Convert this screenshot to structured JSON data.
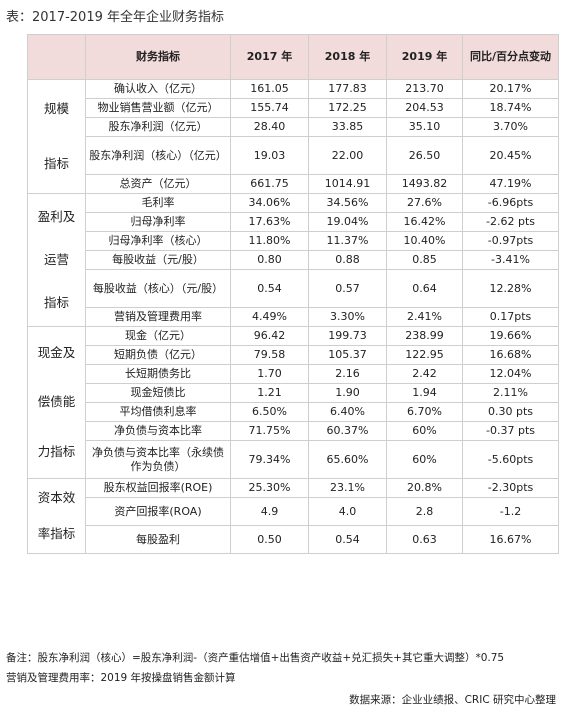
{
  "title": "表：2017-2019 年全年企业财务指标",
  "headers": {
    "metric": "财务指标",
    "y2017": "2017 年",
    "y2018": "2018 年",
    "y2019": "2019 年",
    "change": "同比/百分点变动"
  },
  "groups": [
    {
      "category": [
        "规模",
        "指标"
      ],
      "rows": [
        {
          "metric": "确认收入（亿元）",
          "y2017": "161.05",
          "y2018": "177.83",
          "y2019": "213.70",
          "change": "20.17%"
        },
        {
          "metric": "物业销售营业额（亿元）",
          "y2017": "155.74",
          "y2018": "172.25",
          "y2019": "204.53",
          "change": "18.74%"
        },
        {
          "metric": "股东净利润（亿元）",
          "y2017": "28.40",
          "y2018": "33.85",
          "y2019": "35.10",
          "change": "3.70%"
        },
        {
          "metric": "股东净利润（核心）（亿元）",
          "y2017": "19.03",
          "y2018": "22.00",
          "y2019": "26.50",
          "change": "20.45%"
        },
        {
          "metric": "总资产（亿元）",
          "y2017": "661.75",
          "y2018": "1014.91",
          "y2019": "1493.82",
          "change": "47.19%"
        }
      ]
    },
    {
      "category": [
        "盈利及",
        "运营",
        "指标"
      ],
      "rows": [
        {
          "metric": "毛利率",
          "y2017": "34.06%",
          "y2018": "34.56%",
          "y2019": "27.6%",
          "change": "-6.96pts"
        },
        {
          "metric": "归母净利率",
          "y2017": "17.63%",
          "y2018": "19.04%",
          "y2019": "16.42%",
          "change": "-2.62 pts"
        },
        {
          "metric": "归母净利率（核心）",
          "y2017": "11.80%",
          "y2018": "11.37%",
          "y2019": "10.40%",
          "change": "-0.97pts"
        },
        {
          "metric": "每股收益（元/股）",
          "y2017": "0.80",
          "y2018": "0.88",
          "y2019": "0.85",
          "change": "-3.41%"
        },
        {
          "metric": "每股收益（核心）（元/股）",
          "y2017": "0.54",
          "y2018": "0.57",
          "y2019": "0.64",
          "change": "12.28%"
        },
        {
          "metric": "营销及管理费用率",
          "y2017": "4.49%",
          "y2018": "3.30%",
          "y2019": "2.41%",
          "change": "0.17pts"
        }
      ]
    },
    {
      "category": [
        "现金及",
        "偿债能",
        "力指标"
      ],
      "rows": [
        {
          "metric": "现金（亿元）",
          "y2017": "96.42",
          "y2018": "199.73",
          "y2019": "238.99",
          "change": "19.66%"
        },
        {
          "metric": "短期负债（亿元）",
          "y2017": "79.58",
          "y2018": "105.37",
          "y2019": "122.95",
          "change": "16.68%"
        },
        {
          "metric": "长短期债务比",
          "y2017": "1.70",
          "y2018": "2.16",
          "y2019": "2.42",
          "change": "12.04%"
        },
        {
          "metric": "现金短债比",
          "y2017": "1.21",
          "y2018": "1.90",
          "y2019": "1.94",
          "change": "2.11%"
        },
        {
          "metric": "平均借债利息率",
          "y2017": "6.50%",
          "y2018": "6.40%",
          "y2019": "6.70%",
          "change": "0.30 pts"
        },
        {
          "metric": "净负债与资本比率",
          "y2017": "71.75%",
          "y2018": "60.37%",
          "y2019": "60%",
          "change": "-0.37 pts"
        },
        {
          "metric": "净负债与资本比率（永续债作为负债）",
          "y2017": "79.34%",
          "y2018": "65.60%",
          "y2019": "60%",
          "change": "-5.60pts"
        }
      ]
    },
    {
      "category": [
        "资本效",
        "率指标"
      ],
      "rows": [
        {
          "metric": "股东权益回报率(ROE)",
          "y2017": "25.30%",
          "y2018": "23.1%",
          "y2019": "20.8%",
          "change": "-2.30pts"
        },
        {
          "metric": "资产回报率(ROA)",
          "y2017": "4.9",
          "y2018": "4.0",
          "y2019": "2.8",
          "change": "-1.2"
        },
        {
          "metric": "每股盈利",
          "y2017": "0.50",
          "y2018": "0.54",
          "y2019": "0.63",
          "change": "16.67%"
        }
      ]
    }
  ],
  "notes": [
    "备注：股东净利润（核心）=股东净利润-（资产重估增值+出售资产收益+兑汇损失+其它重大调整）*0.75",
    "营销及管理费用率：2019 年按操盘销售金额计算"
  ],
  "source": "数据来源：企业业绩报、CRIC 研究中心整理"
}
